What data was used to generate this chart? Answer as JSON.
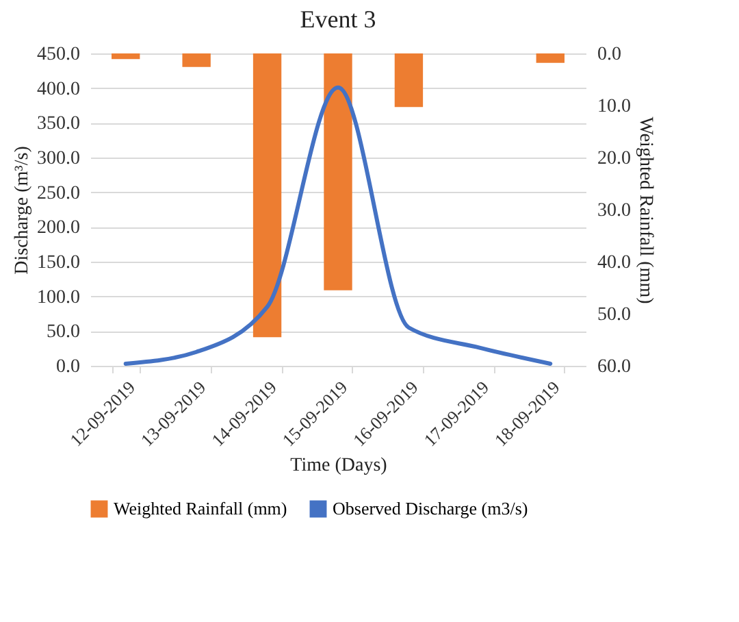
{
  "chart_data": {
    "type": "bar",
    "title": "Event 3",
    "xlabel": "Time (Days)",
    "ylabel": "Discharge (m³/s)",
    "y2label": "Weighted Rainfall (mm)",
    "categories": [
      "12-09-2019",
      "13-09-2019",
      "14-09-2019",
      "15-09-2019",
      "16-09-2019",
      "17-09-2019",
      "18-09-2019"
    ],
    "series": [
      {
        "name": "Weighted Rainfall (mm)",
        "axis": "y2",
        "color": "#ed7d31",
        "values": [
          1.1,
          2.6,
          54.5,
          45.5,
          10.3,
          0,
          1.8
        ]
      },
      {
        "name": "Observed Discharge (m3/s)",
        "type": "line",
        "color": "#4472c4",
        "values": [
          3,
          20,
          85,
          401,
          55,
          26,
          3
        ]
      }
    ],
    "ylim": [
      0,
      450
    ],
    "yticks": [
      {
        "value": 0,
        "label": "0.0"
      },
      {
        "value": 50,
        "label": "50.0"
      },
      {
        "value": 100,
        "label": "100.0"
      },
      {
        "value": 150,
        "label": "150.0"
      },
      {
        "value": 200,
        "label": "200.0"
      },
      {
        "value": 250,
        "label": "250.0"
      },
      {
        "value": 300,
        "label": "300.0"
      },
      {
        "value": 350,
        "label": "350.0"
      },
      {
        "value": 400,
        "label": "400.0"
      },
      {
        "value": 450,
        "label": "450.0"
      }
    ],
    "y2lim": [
      60,
      0
    ],
    "y2ticks": [
      {
        "value": 0,
        "label": "0.0"
      },
      {
        "value": 10,
        "label": "10.0"
      },
      {
        "value": 20,
        "label": "20.0"
      },
      {
        "value": 30,
        "label": "30.0"
      },
      {
        "value": 40,
        "label": "40.0"
      },
      {
        "value": 50,
        "label": "50.0"
      },
      {
        "value": 60,
        "label": "60.0"
      }
    ],
    "grid": "y",
    "legend": "bottom"
  }
}
